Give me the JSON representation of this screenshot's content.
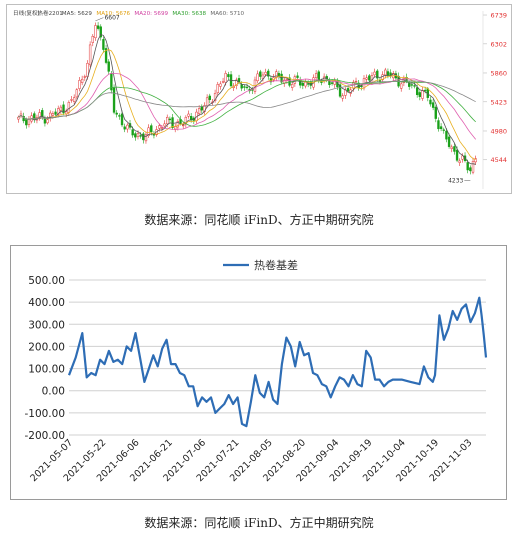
{
  "captions": {
    "top": "数据来源：同花顺 iFinD、方正中期研究院",
    "bottom": "数据来源：同花顺 iFinD、方正中期研究院"
  },
  "candle_chart": {
    "legend": [
      {
        "label": "日线(复权)",
        "color": "#444444"
      },
      {
        "label": "热卷2201",
        "color": "#444444"
      },
      {
        "label": "MA5: 5629",
        "color": "#444444"
      },
      {
        "label": "MA10: 5676",
        "color": "#e0a010"
      },
      {
        "label": "MA20: 5699",
        "color": "#d040a0"
      },
      {
        "label": "MA30: 5638",
        "color": "#30a030"
      },
      {
        "label": "MA60: 5710",
        "color": "#666666"
      }
    ],
    "right_ticks": [
      "6739",
      "6302",
      "5860",
      "5423",
      "4980",
      "4544"
    ],
    "peak_label": "6607",
    "low_label": "4233",
    "colors": {
      "up": "#e23030",
      "down": "#18a018",
      "ma5": "#555555",
      "ma10": "#e8b020",
      "ma20": "#e060b0",
      "ma30": "#40b040",
      "ma60": "#888888"
    }
  },
  "chart_data": {
    "type": "line",
    "series": [
      {
        "name": "热卷基差",
        "color": "#2e6db5",
        "x": [
          "2021-05-07",
          "2021-05-10",
          "2021-05-13",
          "2021-05-15",
          "2021-05-17",
          "2021-05-19",
          "2021-05-21",
          "2021-05-23",
          "2021-05-25",
          "2021-05-27",
          "2021-05-29",
          "2021-05-31",
          "2021-06-02",
          "2021-06-04",
          "2021-06-06",
          "2021-06-08",
          "2021-06-10",
          "2021-06-12",
          "2021-06-14",
          "2021-06-16",
          "2021-06-18",
          "2021-06-20",
          "2021-06-22",
          "2021-06-24",
          "2021-06-26",
          "2021-06-28",
          "2021-06-30",
          "2021-07-02",
          "2021-07-04",
          "2021-07-06",
          "2021-07-08",
          "2021-07-10",
          "2021-07-12",
          "2021-07-14",
          "2021-07-16",
          "2021-07-18",
          "2021-07-20",
          "2021-07-22",
          "2021-07-24",
          "2021-07-26",
          "2021-07-28",
          "2021-07-30",
          "2021-08-01",
          "2021-08-03",
          "2021-08-05",
          "2021-08-07",
          "2021-08-09",
          "2021-08-11",
          "2021-08-13",
          "2021-08-15",
          "2021-08-17",
          "2021-08-19",
          "2021-08-21",
          "2021-08-23",
          "2021-08-25",
          "2021-08-27",
          "2021-08-29",
          "2021-08-31",
          "2021-09-02",
          "2021-09-04",
          "2021-09-06",
          "2021-09-08",
          "2021-09-10",
          "2021-09-12",
          "2021-09-14",
          "2021-09-16",
          "2021-09-18",
          "2021-09-20",
          "2021-09-22",
          "2021-09-24",
          "2021-09-26",
          "2021-09-28",
          "2021-09-30",
          "2021-10-04",
          "2021-10-08",
          "2021-10-12",
          "2021-10-14",
          "2021-10-16",
          "2021-10-18",
          "2021-10-19",
          "2021-10-21",
          "2021-10-23",
          "2021-10-25",
          "2021-10-27",
          "2021-10-29",
          "2021-10-31",
          "2021-11-02",
          "2021-11-04",
          "2021-11-06",
          "2021-11-08",
          "2021-11-09",
          "2021-11-10",
          "2021-11-11"
        ],
        "values": [
          70,
          150,
          260,
          60,
          80,
          70,
          140,
          120,
          180,
          130,
          140,
          120,
          200,
          180,
          260,
          150,
          40,
          100,
          160,
          110,
          190,
          230,
          120,
          120,
          80,
          70,
          20,
          20,
          -70,
          -30,
          -50,
          -30,
          -100,
          -80,
          -60,
          -20,
          -60,
          -30,
          -150,
          -160,
          -50,
          70,
          -10,
          -30,
          40,
          -40,
          -60,
          120,
          240,
          200,
          110,
          220,
          160,
          170,
          80,
          70,
          30,
          20,
          -30,
          20,
          60,
          50,
          20,
          70,
          30,
          20,
          180,
          150,
          50,
          50,
          20,
          40,
          50,
          50,
          40,
          30,
          110,
          60,
          40,
          70,
          340,
          230,
          280,
          360,
          320,
          370,
          390,
          310,
          350,
          420,
          340,
          250,
          150
        ]
      }
    ],
    "legend": "top-center",
    "xticks": [
      "2021-05-07",
      "2021-05-22",
      "2021-06-06",
      "2021-06-21",
      "2021-07-06",
      "2021-07-21",
      "2021-08-05",
      "2021-08-20",
      "2021-09-04",
      "2021-09-19",
      "2021-10-04",
      "2021-10-19",
      "2021-11-03"
    ],
    "yticks": [
      "500.00",
      "400.00",
      "300.00",
      "200.00",
      "100.00",
      "0.00",
      "-100.00",
      "-200.00"
    ],
    "ylim": [
      -200,
      500
    ],
    "grid": true
  }
}
